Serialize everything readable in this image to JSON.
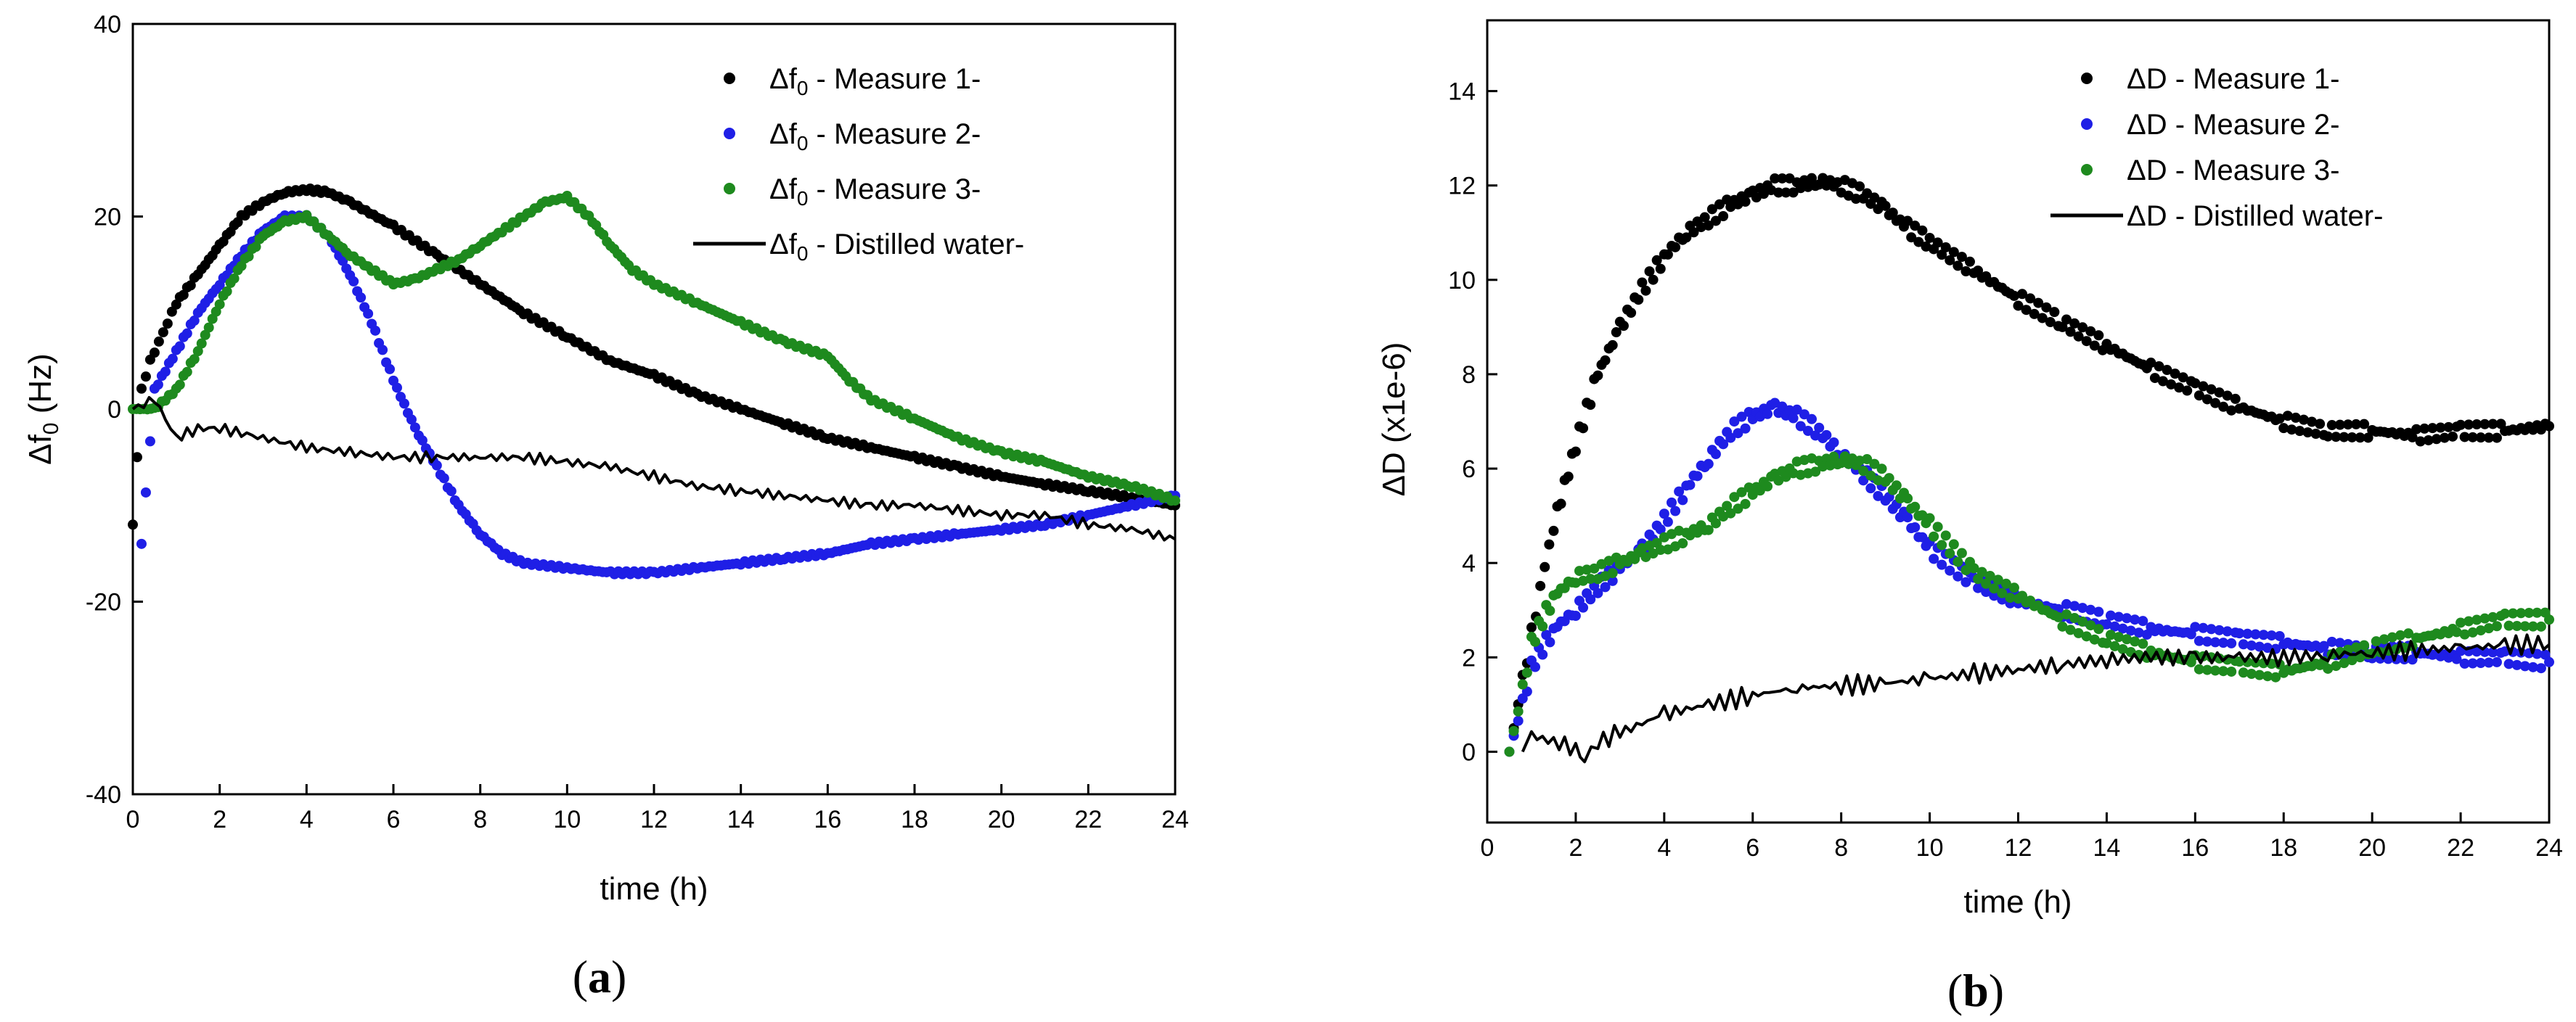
{
  "panels": [
    {
      "open": "(",
      "letter": "a",
      "close": ")"
    },
    {
      "open": "(",
      "letter": "b",
      "close": ")"
    }
  ],
  "chart_data": [
    {
      "type": "scatter",
      "title": "",
      "xlabel": "time (h)",
      "ylabel": {
        "prefix": "Δf",
        "sub": "0",
        "suffix": " (Hz)"
      },
      "xlim": [
        0,
        24
      ],
      "ylim": [
        -40,
        40
      ],
      "xticks": [
        0,
        2,
        4,
        6,
        8,
        10,
        12,
        14,
        16,
        18,
        20,
        22,
        24
      ],
      "yticks": [
        -40,
        -20,
        0,
        20,
        40
      ],
      "legend_position": "top-right",
      "series": [
        {
          "label": {
            "prefix": "Δf",
            "sub": "0",
            "suffix": " - Measure 1-"
          },
          "color": "#000000",
          "style": "dots",
          "x": [
            0,
            0.2,
            0.4,
            0.6,
            0.8,
            1,
            1.5,
            2,
            2.5,
            3,
            3.5,
            4,
            4.5,
            5,
            6,
            7,
            8,
            9,
            10,
            11,
            12,
            13,
            14,
            15,
            16,
            17,
            18,
            19,
            20,
            21,
            22,
            23,
            24
          ],
          "y": [
            -12,
            2,
            5,
            7,
            9,
            11,
            14,
            17,
            20,
            21.5,
            22.5,
            22.8,
            22.5,
            21.5,
            19,
            16,
            13,
            10,
            7.5,
            5,
            3.5,
            1.5,
            0,
            -1.5,
            -3,
            -4,
            -5,
            -6,
            -7,
            -7.8,
            -8.5,
            -9.2,
            -10
          ]
        },
        {
          "label": {
            "prefix": "Δf",
            "sub": "0",
            "suffix": " - Measure 2-"
          },
          "color": "#1f1fe6",
          "style": "dots",
          "x": [
            0.2,
            0.5,
            1,
            1.5,
            2,
            2.5,
            3,
            3.5,
            4,
            4.5,
            5,
            5.5,
            6,
            6.5,
            7,
            7.5,
            8,
            8.5,
            9,
            10,
            11,
            12,
            13,
            14,
            15,
            16,
            17,
            18,
            19,
            20,
            21,
            22,
            23,
            24
          ],
          "y": [
            -14,
            2,
            6,
            10,
            13,
            16,
            18.5,
            20,
            20,
            18,
            14,
            9,
            3,
            -2,
            -6,
            -10,
            -13,
            -15,
            -16,
            -16.5,
            -17,
            -17,
            -16.5,
            -16,
            -15.5,
            -15,
            -14,
            -13.5,
            -13,
            -12.5,
            -12,
            -11,
            -10,
            -9
          ]
        },
        {
          "label": {
            "prefix": "Δf",
            "sub": "0",
            "suffix": " - Measure 3-"
          },
          "color": "#1e8a1e",
          "style": "dots",
          "x": [
            0,
            0.5,
            1,
            1.5,
            2,
            2.5,
            3,
            3.5,
            4,
            4.5,
            5,
            5.5,
            6,
            6.5,
            7,
            7.5,
            8,
            8.5,
            9,
            9.5,
            10,
            10.5,
            11,
            11.5,
            12,
            13,
            14,
            15,
            16,
            16.5,
            17,
            18,
            19,
            20,
            21,
            22,
            23,
            24
          ],
          "y": [
            0,
            0,
            2,
            6,
            11,
            15,
            18,
            19.5,
            20,
            18,
            16,
            14.5,
            13,
            13.5,
            14.5,
            15.5,
            17,
            18.5,
            20,
            21.5,
            22,
            20,
            17,
            14.5,
            13,
            11,
            9,
            7,
            5.5,
            3,
            1,
            -1,
            -3,
            -4.5,
            -5.5,
            -7,
            -8,
            -9.5
          ]
        },
        {
          "label": {
            "prefix": "Δf",
            "sub": "0",
            "suffix": " - Distilled water-"
          },
          "color": "#000000",
          "style": "line",
          "x": [
            0,
            0.5,
            1,
            1.5,
            2,
            3,
            4,
            5,
            6,
            7,
            8,
            9,
            10,
            11,
            12,
            13,
            14,
            15,
            16,
            17,
            18,
            19,
            20,
            21,
            22,
            23,
            24
          ],
          "y": [
            0,
            1,
            -3,
            -2,
            -2,
            -3,
            -4,
            -4.5,
            -5,
            -5,
            -5,
            -5,
            -5.5,
            -6,
            -7,
            -8,
            -8.5,
            -9,
            -9.5,
            -10,
            -10,
            -10.5,
            -11,
            -11,
            -12,
            -12.5,
            -13.5
          ]
        }
      ]
    },
    {
      "type": "scatter",
      "title": "",
      "xlabel": "time (h)",
      "ylabel": "ΔD (x1e-6)",
      "xlim": [
        0,
        24
      ],
      "ylim": [
        -1.5,
        15.5
      ],
      "xticks": [
        0,
        2,
        4,
        6,
        8,
        10,
        12,
        14,
        16,
        18,
        20,
        22,
        24
      ],
      "yticks": [
        0,
        2,
        4,
        6,
        8,
        10,
        12,
        14
      ],
      "legend_position": "top-right",
      "series": [
        {
          "label": "ΔD - Measure 1-",
          "color": "#000000",
          "style": "dots",
          "x": [
            0.6,
            0.8,
            1,
            1.2,
            1.5,
            2,
            2.5,
            3,
            3.5,
            4,
            4.5,
            5,
            5.5,
            6,
            6.5,
            7,
            7.5,
            8,
            8.5,
            9,
            9.5,
            10,
            11,
            12,
            13,
            14,
            15,
            16,
            17,
            18,
            19,
            20,
            21,
            22,
            23,
            24
          ],
          "y": [
            0.5,
            1.5,
            2.5,
            3.5,
            4.8,
            6.5,
            8,
            9,
            9.8,
            10.5,
            11,
            11.3,
            11.6,
            11.8,
            12,
            12,
            12.1,
            12,
            11.8,
            11.5,
            11.1,
            10.8,
            10.2,
            9.6,
            9.1,
            8.6,
            8.1,
            7.7,
            7.3,
            7,
            6.8,
            6.8,
            6.7,
            6.8,
            6.8,
            6.9
          ]
        },
        {
          "label": "ΔD - Measure 2-",
          "color": "#1f1fe6",
          "style": "dots",
          "x": [
            0.5,
            0.8,
            1,
            1.5,
            2,
            2.5,
            3,
            3.5,
            4,
            4.5,
            5,
            5.5,
            6,
            6.5,
            7,
            7.5,
            8,
            8.5,
            9,
            9.5,
            10,
            11,
            12,
            13,
            14,
            15,
            16,
            17,
            18,
            19,
            20,
            21,
            22,
            23,
            24
          ],
          "y": [
            0,
            1,
            1.8,
            2.6,
            3,
            3.5,
            3.9,
            4.3,
            4.9,
            5.6,
            6.2,
            6.8,
            7.1,
            7.3,
            7.1,
            6.8,
            6.3,
            5.9,
            5.4,
            4.9,
            4.3,
            3.6,
            3.2,
            3,
            2.8,
            2.6,
            2.5,
            2.4,
            2.3,
            2.2,
            2.1,
            2.1,
            2,
            2,
            1.9
          ]
        },
        {
          "label": "ΔD - Measure 3-",
          "color": "#1e8a1e",
          "style": "dots",
          "x": [
            0.5,
            0.8,
            1,
            1.5,
            2,
            2.5,
            3,
            3.5,
            4,
            4.5,
            5,
            5.5,
            6,
            6.5,
            7,
            7.5,
            8,
            8.5,
            9,
            9.5,
            10,
            11,
            12,
            13,
            14,
            15,
            16,
            17,
            18,
            19,
            20,
            21,
            22,
            23,
            24
          ],
          "y": [
            0,
            1.3,
            2.3,
            3.3,
            3.7,
            3.8,
            4,
            4.2,
            4.4,
            4.6,
            4.8,
            5.2,
            5.5,
            5.8,
            6,
            6.1,
            6.2,
            6.1,
            5.8,
            5.3,
            4.8,
            3.8,
            3.3,
            2.8,
            2.4,
            2.1,
            1.9,
            1.8,
            1.7,
            1.9,
            2.2,
            2.4,
            2.6,
            2.8,
            2.8
          ]
        },
        {
          "label": "ΔD - Distilled water-",
          "color": "#000000",
          "style": "line",
          "x": [
            0.8,
            1,
            1.5,
            2,
            2.2,
            2.5,
            3,
            4,
            5,
            6,
            7,
            8,
            9,
            10,
            11,
            12,
            13,
            14,
            15,
            16,
            17,
            18,
            19,
            20,
            21,
            22,
            23,
            24
          ],
          "y": [
            0,
            0.35,
            0.2,
            0.1,
            -0.15,
            0.2,
            0.4,
            0.8,
            1,
            1.2,
            1.35,
            1.4,
            1.45,
            1.55,
            1.65,
            1.75,
            1.85,
            1.95,
            2,
            2,
            2,
            2,
            2.05,
            2.1,
            2.15,
            2.2,
            2.25,
            2.3
          ]
        }
      ]
    }
  ]
}
